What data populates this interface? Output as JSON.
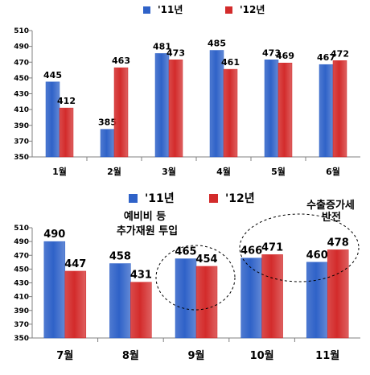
{
  "colors": {
    "y2011": "#2f62c8",
    "y2012": "#d32b2b"
  },
  "chart_data": [
    {
      "type": "bar",
      "title": "",
      "xlabel": "",
      "ylabel": "",
      "ylim": [
        350,
        510
      ],
      "yticks": [
        350,
        370,
        390,
        410,
        430,
        450,
        470,
        490,
        510
      ],
      "categories": [
        "1월",
        "2월",
        "3월",
        "4월",
        "5월",
        "6월"
      ],
      "legend_position": "top",
      "series": [
        {
          "name": "'11년",
          "values": [
            445,
            385,
            481,
            485,
            473,
            467
          ]
        },
        {
          "name": "'12년",
          "values": [
            412,
            463,
            473,
            461,
            469,
            472
          ]
        }
      ]
    },
    {
      "type": "bar",
      "title": "",
      "xlabel": "",
      "ylabel": "",
      "ylim": [
        350,
        510
      ],
      "yticks": [
        350,
        370,
        390,
        410,
        430,
        450,
        470,
        490,
        510
      ],
      "categories": [
        "7월",
        "8월",
        "9월",
        "10월",
        "11월"
      ],
      "legend_position": "top",
      "series": [
        {
          "name": "'11년",
          "values": [
            490,
            458,
            465,
            466,
            460
          ]
        },
        {
          "name": "'12년",
          "values": [
            447,
            431,
            454,
            471,
            478
          ]
        }
      ],
      "annotations": [
        {
          "lines": [
            "예비비 등",
            "추가재원 투입"
          ],
          "category_index": 2
        },
        {
          "lines": [
            "수출증가세",
            "반전"
          ],
          "category_index": 4
        }
      ]
    }
  ]
}
